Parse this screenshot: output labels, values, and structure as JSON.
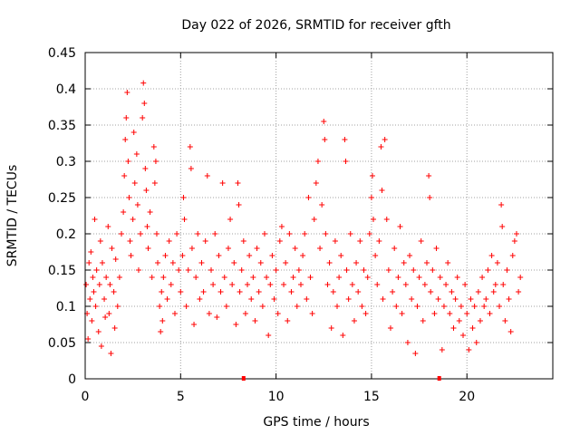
{
  "chart_data": {
    "type": "scatter",
    "title": "Day 022 of 2026, SRMTID for receiver gfth",
    "xlabel": "GPS time / hours",
    "ylabel": "SRMTID / TECUs",
    "xlim": [
      0,
      24.5
    ],
    "ylim": [
      0,
      0.45
    ],
    "x_ticks": [
      0,
      5,
      10,
      15,
      20
    ],
    "x_tick_labels": [
      "0",
      "5",
      "10",
      "15",
      "20"
    ],
    "y_ticks": [
      0,
      0.05,
      0.1,
      0.15,
      0.2,
      0.25,
      0.3,
      0.35,
      0.4,
      0.45
    ],
    "y_tick_labels": [
      "0",
      "0.05",
      "0.1",
      "0.15",
      "0.2",
      "0.25",
      "0.3",
      "0.35",
      "0.4",
      "0.45"
    ],
    "grid": true,
    "marker": "+",
    "color": "#ff0000",
    "series": [
      {
        "name": "SRMTID",
        "points": [
          [
            0.05,
            0.13
          ],
          [
            0.1,
            0.09
          ],
          [
            0.15,
            0.055
          ],
          [
            0.2,
            0.16
          ],
          [
            0.25,
            0.11
          ],
          [
            0.3,
            0.175
          ],
          [
            0.35,
            0.08
          ],
          [
            0.4,
            0.14
          ],
          [
            0.45,
            0.12
          ],
          [
            0.5,
            0.22
          ],
          [
            0.55,
            0.1
          ],
          [
            0.6,
            0.15
          ],
          [
            0.7,
            0.065
          ],
          [
            0.75,
            0.13
          ],
          [
            0.8,
            0.19
          ],
          [
            0.85,
            0.045
          ],
          [
            0.9,
            0.16
          ],
          [
            1.0,
            0.11
          ],
          [
            1.05,
            0.085
          ],
          [
            1.1,
            0.14
          ],
          [
            1.2,
            0.21
          ],
          [
            1.25,
            0.09
          ],
          [
            1.3,
            0.13
          ],
          [
            1.35,
            0.035
          ],
          [
            1.4,
            0.18
          ],
          [
            1.5,
            0.12
          ],
          [
            1.55,
            0.07
          ],
          [
            1.6,
            0.165
          ],
          [
            1.7,
            0.1
          ],
          [
            1.8,
            0.14
          ],
          [
            1.9,
            0.2
          ],
          [
            2.0,
            0.23
          ],
          [
            2.05,
            0.28
          ],
          [
            2.1,
            0.33
          ],
          [
            2.15,
            0.36
          ],
          [
            2.2,
            0.395
          ],
          [
            2.25,
            0.3
          ],
          [
            2.3,
            0.25
          ],
          [
            2.35,
            0.19
          ],
          [
            2.4,
            0.17
          ],
          [
            2.5,
            0.22
          ],
          [
            2.55,
            0.34
          ],
          [
            2.6,
            0.27
          ],
          [
            2.7,
            0.31
          ],
          [
            2.75,
            0.24
          ],
          [
            2.8,
            0.15
          ],
          [
            2.9,
            0.2
          ],
          [
            3.0,
            0.36
          ],
          [
            3.05,
            0.408
          ],
          [
            3.1,
            0.38
          ],
          [
            3.15,
            0.29
          ],
          [
            3.2,
            0.26
          ],
          [
            3.25,
            0.21
          ],
          [
            3.3,
            0.18
          ],
          [
            3.4,
            0.23
          ],
          [
            3.5,
            0.14
          ],
          [
            3.6,
            0.32
          ],
          [
            3.65,
            0.27
          ],
          [
            3.7,
            0.3
          ],
          [
            3.75,
            0.2
          ],
          [
            3.8,
            0.16
          ],
          [
            3.9,
            0.1
          ],
          [
            3.95,
            0.065
          ],
          [
            4.0,
            0.12
          ],
          [
            4.05,
            0.08
          ],
          [
            4.1,
            0.14
          ],
          [
            4.2,
            0.17
          ],
          [
            4.3,
            0.11
          ],
          [
            4.4,
            0.19
          ],
          [
            4.5,
            0.13
          ],
          [
            4.6,
            0.16
          ],
          [
            4.7,
            0.09
          ],
          [
            4.8,
            0.2
          ],
          [
            4.9,
            0.15
          ],
          [
            5.0,
            0.12
          ],
          [
            5.1,
            0.17
          ],
          [
            5.15,
            0.25
          ],
          [
            5.2,
            0.22
          ],
          [
            5.3,
            0.1
          ],
          [
            5.4,
            0.15
          ],
          [
            5.5,
            0.32
          ],
          [
            5.55,
            0.29
          ],
          [
            5.6,
            0.18
          ],
          [
            5.7,
            0.075
          ],
          [
            5.8,
            0.14
          ],
          [
            5.9,
            0.2
          ],
          [
            6.0,
            0.11
          ],
          [
            6.1,
            0.16
          ],
          [
            6.2,
            0.12
          ],
          [
            6.3,
            0.19
          ],
          [
            6.4,
            0.28
          ],
          [
            6.5,
            0.09
          ],
          [
            6.6,
            0.15
          ],
          [
            6.7,
            0.13
          ],
          [
            6.8,
            0.2
          ],
          [
            6.9,
            0.085
          ],
          [
            7.0,
            0.17
          ],
          [
            7.1,
            0.12
          ],
          [
            7.2,
            0.27
          ],
          [
            7.3,
            0.14
          ],
          [
            7.4,
            0.1
          ],
          [
            7.5,
            0.18
          ],
          [
            7.6,
            0.22
          ],
          [
            7.7,
            0.13
          ],
          [
            7.8,
            0.16
          ],
          [
            7.9,
            0.075
          ],
          [
            8.0,
            0.27
          ],
          [
            8.05,
            0.24
          ],
          [
            8.1,
            0.12
          ],
          [
            8.2,
            0.15
          ],
          [
            8.3,
            0.19
          ],
          [
            8.4,
            0.09
          ],
          [
            8.5,
            0.13
          ],
          [
            8.6,
            0.17
          ],
          [
            8.7,
            0.11
          ],
          [
            8.8,
            0.14
          ],
          [
            8.9,
            0.08
          ],
          [
            9.0,
            0.18
          ],
          [
            9.1,
            0.12
          ],
          [
            9.2,
            0.16
          ],
          [
            9.3,
            0.1
          ],
          [
            9.4,
            0.2
          ],
          [
            9.5,
            0.14
          ],
          [
            9.6,
            0.06
          ],
          [
            9.7,
            0.13
          ],
          [
            9.8,
            0.17
          ],
          [
            9.9,
            0.11
          ],
          [
            10.0,
            0.15
          ],
          [
            10.1,
            0.09
          ],
          [
            10.2,
            0.19
          ],
          [
            10.3,
            0.21
          ],
          [
            10.4,
            0.13
          ],
          [
            10.5,
            0.16
          ],
          [
            10.6,
            0.08
          ],
          [
            10.7,
            0.2
          ],
          [
            10.8,
            0.12
          ],
          [
            10.9,
            0.14
          ],
          [
            11.0,
            0.18
          ],
          [
            11.1,
            0.1
          ],
          [
            11.2,
            0.15
          ],
          [
            11.3,
            0.13
          ],
          [
            11.4,
            0.17
          ],
          [
            11.5,
            0.2
          ],
          [
            11.6,
            0.11
          ],
          [
            11.7,
            0.25
          ],
          [
            11.8,
            0.14
          ],
          [
            11.9,
            0.09
          ],
          [
            12.0,
            0.22
          ],
          [
            12.1,
            0.27
          ],
          [
            12.2,
            0.3
          ],
          [
            12.3,
            0.18
          ],
          [
            12.4,
            0.24
          ],
          [
            12.5,
            0.355
          ],
          [
            12.55,
            0.33
          ],
          [
            12.6,
            0.2
          ],
          [
            12.7,
            0.13
          ],
          [
            12.8,
            0.16
          ],
          [
            12.9,
            0.07
          ],
          [
            13.0,
            0.12
          ],
          [
            13.1,
            0.19
          ],
          [
            13.2,
            0.1
          ],
          [
            13.3,
            0.14
          ],
          [
            13.4,
            0.17
          ],
          [
            13.5,
            0.06
          ],
          [
            13.6,
            0.33
          ],
          [
            13.65,
            0.3
          ],
          [
            13.7,
            0.15
          ],
          [
            13.8,
            0.11
          ],
          [
            13.9,
            0.2
          ],
          [
            14.0,
            0.13
          ],
          [
            14.1,
            0.08
          ],
          [
            14.2,
            0.16
          ],
          [
            14.3,
            0.12
          ],
          [
            14.4,
            0.19
          ],
          [
            14.5,
            0.1
          ],
          [
            14.6,
            0.15
          ],
          [
            14.7,
            0.09
          ],
          [
            14.8,
            0.14
          ],
          [
            14.9,
            0.2
          ],
          [
            15.0,
            0.25
          ],
          [
            15.05,
            0.28
          ],
          [
            15.1,
            0.22
          ],
          [
            15.2,
            0.17
          ],
          [
            15.3,
            0.13
          ],
          [
            15.4,
            0.19
          ],
          [
            15.5,
            0.32
          ],
          [
            15.55,
            0.26
          ],
          [
            15.6,
            0.11
          ],
          [
            15.7,
            0.33
          ],
          [
            15.8,
            0.22
          ],
          [
            15.9,
            0.15
          ],
          [
            16.0,
            0.07
          ],
          [
            16.1,
            0.12
          ],
          [
            16.2,
            0.18
          ],
          [
            16.3,
            0.1
          ],
          [
            16.4,
            0.14
          ],
          [
            16.5,
            0.21
          ],
          [
            16.6,
            0.09
          ],
          [
            16.7,
            0.16
          ],
          [
            16.8,
            0.13
          ],
          [
            16.9,
            0.05
          ],
          [
            17.0,
            0.17
          ],
          [
            17.1,
            0.11
          ],
          [
            17.2,
            0.15
          ],
          [
            17.3,
            0.035
          ],
          [
            17.4,
            0.1
          ],
          [
            17.5,
            0.14
          ],
          [
            17.6,
            0.19
          ],
          [
            17.7,
            0.08
          ],
          [
            17.8,
            0.13
          ],
          [
            17.9,
            0.16
          ],
          [
            18.0,
            0.28
          ],
          [
            18.05,
            0.25
          ],
          [
            18.1,
            0.12
          ],
          [
            18.2,
            0.15
          ],
          [
            18.3,
            0.09
          ],
          [
            18.4,
            0.18
          ],
          [
            18.5,
            0.11
          ],
          [
            18.6,
            0.14
          ],
          [
            18.7,
            0.04
          ],
          [
            18.8,
            0.1
          ],
          [
            18.9,
            0.13
          ],
          [
            19.0,
            0.16
          ],
          [
            19.1,
            0.09
          ],
          [
            19.2,
            0.12
          ],
          [
            19.3,
            0.07
          ],
          [
            19.4,
            0.11
          ],
          [
            19.5,
            0.14
          ],
          [
            19.6,
            0.08
          ],
          [
            19.7,
            0.1
          ],
          [
            19.8,
            0.06
          ],
          [
            19.9,
            0.13
          ],
          [
            20.0,
            0.09
          ],
          [
            20.1,
            0.04
          ],
          [
            20.2,
            0.11
          ],
          [
            20.3,
            0.07
          ],
          [
            20.4,
            0.1
          ],
          [
            20.5,
            0.05
          ],
          [
            20.6,
            0.12
          ],
          [
            20.7,
            0.08
          ],
          [
            20.8,
            0.14
          ],
          [
            20.9,
            0.1
          ],
          [
            21.0,
            0.11
          ],
          [
            21.1,
            0.15
          ],
          [
            21.2,
            0.09
          ],
          [
            21.3,
            0.17
          ],
          [
            21.4,
            0.12
          ],
          [
            21.5,
            0.13
          ],
          [
            21.6,
            0.16
          ],
          [
            21.7,
            0.1
          ],
          [
            21.8,
            0.24
          ],
          [
            21.85,
            0.21
          ],
          [
            21.9,
            0.13
          ],
          [
            22.0,
            0.08
          ],
          [
            22.1,
            0.15
          ],
          [
            22.2,
            0.11
          ],
          [
            22.3,
            0.065
          ],
          [
            22.4,
            0.17
          ],
          [
            22.5,
            0.19
          ],
          [
            22.6,
            0.2
          ],
          [
            22.7,
            0.12
          ],
          [
            22.8,
            0.14
          ]
        ]
      }
    ],
    "axis_markers": [
      8.3,
      18.55
    ]
  }
}
